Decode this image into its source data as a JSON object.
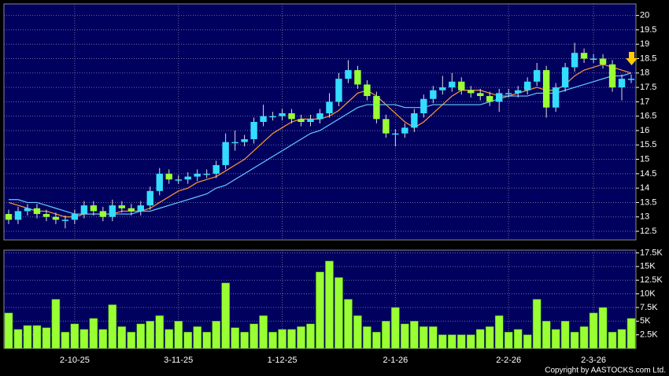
{
  "chart_data": [
    {
      "type": "candlestick",
      "categories": [
        null,
        null,
        null,
        null,
        null,
        null,
        null,
        "2-10-25",
        null,
        null,
        null,
        null,
        null,
        null,
        null,
        null,
        null,
        null,
        "3-11-25",
        null,
        null,
        null,
        null,
        null,
        null,
        null,
        null,
        null,
        null,
        "1-12-25",
        null,
        null,
        null,
        null,
        null,
        null,
        null,
        null,
        null,
        null,
        null,
        "2-1-26",
        null,
        null,
        null,
        null,
        null,
        null,
        null,
        null,
        null,
        null,
        null,
        "2-2-26",
        null,
        null,
        null,
        null,
        null,
        null,
        null,
        null,
        "2-3-26",
        null,
        null,
        null,
        null
      ],
      "open": [
        13.1,
        12.9,
        13.2,
        13.3,
        13.1,
        13.0,
        12.9,
        12.9,
        13.1,
        13.4,
        13.2,
        13.0,
        13.4,
        13.3,
        13.2,
        13.4,
        13.9,
        14.5,
        14.3,
        14.3,
        14.4,
        14.5,
        14.5,
        14.8,
        15.6,
        15.6,
        15.7,
        16.3,
        16.5,
        16.5,
        16.6,
        16.4,
        16.3,
        16.4,
        16.6,
        17.0,
        17.8,
        18.1,
        17.6,
        17.2,
        16.4,
        15.9,
        15.9,
        16.1,
        16.6,
        17.1,
        17.4,
        17.5,
        17.7,
        17.4,
        17.3,
        17.2,
        17.0,
        17.3,
        17.3,
        17.4,
        17.7,
        18.1,
        16.8,
        17.5,
        18.2,
        18.7,
        18.5,
        18.5,
        18.3,
        17.5,
        17.8
      ],
      "high": [
        13.25,
        13.35,
        13.45,
        13.45,
        13.25,
        13.15,
        13.05,
        13.25,
        13.55,
        13.55,
        13.35,
        13.6,
        13.55,
        13.45,
        13.55,
        14.05,
        14.7,
        14.65,
        14.45,
        14.55,
        14.65,
        14.65,
        14.95,
        15.9,
        16.0,
        15.85,
        16.45,
        16.9,
        16.65,
        16.75,
        16.75,
        16.55,
        16.55,
        16.75,
        17.3,
        18.0,
        18.45,
        18.25,
        17.75,
        17.35,
        16.55,
        16.05,
        16.25,
        16.75,
        17.25,
        17.55,
        17.9,
        18.0,
        17.85,
        17.55,
        17.45,
        17.35,
        17.45,
        17.45,
        17.55,
        17.85,
        18.35,
        18.25,
        17.65,
        18.35,
        19.05,
        18.85,
        18.65,
        18.65,
        18.45,
        17.95,
        17.95
      ],
      "low": [
        12.75,
        12.75,
        13.05,
        12.95,
        12.85,
        12.75,
        12.6,
        12.75,
        12.95,
        13.05,
        12.85,
        12.85,
        13.15,
        13.05,
        13.05,
        13.25,
        13.75,
        14.15,
        14.15,
        14.15,
        14.25,
        14.35,
        14.35,
        14.65,
        15.3,
        15.45,
        15.55,
        16.15,
        16.35,
        16.35,
        16.25,
        16.15,
        16.15,
        16.25,
        16.45,
        16.85,
        17.65,
        17.45,
        17.05,
        16.25,
        15.75,
        15.45,
        15.75,
        15.95,
        16.45,
        16.95,
        17.25,
        17.35,
        17.25,
        17.15,
        17.05,
        16.85,
        16.65,
        17.15,
        17.15,
        17.25,
        17.55,
        16.45,
        16.65,
        17.35,
        18.05,
        18.35,
        18.35,
        18.15,
        17.35,
        17.05,
        17.65
      ],
      "close": [
        12.9,
        13.2,
        13.3,
        13.1,
        13.0,
        12.9,
        12.9,
        13.1,
        13.4,
        13.2,
        13.0,
        13.4,
        13.3,
        13.2,
        13.4,
        13.9,
        14.5,
        14.3,
        14.3,
        14.4,
        14.5,
        14.5,
        14.8,
        15.6,
        15.6,
        15.7,
        16.3,
        16.5,
        16.5,
        16.6,
        16.4,
        16.3,
        16.4,
        16.6,
        17.0,
        17.8,
        18.1,
        17.6,
        17.2,
        16.4,
        15.9,
        15.9,
        16.1,
        16.6,
        17.1,
        17.4,
        17.5,
        17.7,
        17.4,
        17.3,
        17.2,
        17.0,
        17.3,
        17.3,
        17.4,
        17.7,
        18.1,
        16.8,
        17.5,
        18.2,
        18.7,
        18.5,
        18.5,
        18.3,
        17.5,
        17.8,
        17.8
      ],
      "up_color": "#33ddff",
      "down_color": "#99ff33",
      "series": [
        {
          "color": "#ff9933",
          "values": [
            13.5,
            13.4,
            13.3,
            13.2,
            13.2,
            13.1,
            13.0,
            13.0,
            13.1,
            13.1,
            13.1,
            13.1,
            13.2,
            13.2,
            13.2,
            13.3,
            13.5,
            13.7,
            13.9,
            14.0,
            14.2,
            14.3,
            14.4,
            14.6,
            14.8,
            15.0,
            15.3,
            15.6,
            15.9,
            16.1,
            16.3,
            16.4,
            16.4,
            16.4,
            16.5,
            16.7,
            17.0,
            17.3,
            17.4,
            17.2,
            16.9,
            16.6,
            16.3,
            16.1,
            16.3,
            16.6,
            16.9,
            17.2,
            17.4,
            17.4,
            17.4,
            17.3,
            17.2,
            17.2,
            17.3,
            17.4,
            17.5,
            17.4,
            17.4,
            17.6,
            17.9,
            18.1,
            18.2,
            18.3,
            18.2,
            18.1,
            18.0
          ]
        },
        {
          "color": "#66ccff",
          "values": [
            13.6,
            13.6,
            13.5,
            13.5,
            13.4,
            13.3,
            13.2,
            13.1,
            13.1,
            13.1,
            13.1,
            13.1,
            13.1,
            13.1,
            13.2,
            13.2,
            13.3,
            13.4,
            13.5,
            13.6,
            13.7,
            13.8,
            14.0,
            14.1,
            14.3,
            14.5,
            14.7,
            14.9,
            15.1,
            15.3,
            15.5,
            15.7,
            15.9,
            16.0,
            16.2,
            16.4,
            16.6,
            16.8,
            16.9,
            16.9,
            16.9,
            16.9,
            16.8,
            16.8,
            16.8,
            16.9,
            16.9,
            16.9,
            16.9,
            16.9,
            16.9,
            17.0,
            17.1,
            17.2,
            17.2,
            17.2,
            17.3,
            17.3,
            17.3,
            17.4,
            17.5,
            17.6,
            17.7,
            17.8,
            17.9,
            17.9,
            18.0
          ]
        }
      ],
      "ylim": [
        12.2,
        20.4
      ],
      "yticks": [
        12.5,
        13,
        13.5,
        14,
        14.5,
        15,
        15.5,
        16,
        16.5,
        17,
        17.5,
        18,
        18.5,
        19,
        19.5,
        20
      ],
      "grid": true
    },
    {
      "type": "bar",
      "values": [
        6500,
        3500,
        4200,
        4200,
        3800,
        9000,
        3000,
        4500,
        3500,
        5500,
        3500,
        8000,
        4000,
        3000,
        4500,
        5000,
        6000,
        3500,
        5000,
        3000,
        4000,
        3000,
        5000,
        12000,
        3800,
        3000,
        4500,
        6000,
        3000,
        3500,
        3500,
        4000,
        4500,
        14000,
        16000,
        13000,
        9000,
        6000,
        4000,
        3000,
        5000,
        7500,
        4500,
        5000,
        4000,
        4000,
        2500,
        2500,
        2500,
        2500,
        3500,
        4000,
        6000,
        3000,
        3500,
        2500,
        9000,
        5000,
        3500,
        5000,
        3000,
        4000,
        6500,
        7500,
        3000,
        3500,
        5500
      ],
      "color": "#99ff33",
      "ylim": [
        0,
        18000
      ],
      "yticks": [
        {
          "value": 2500,
          "label": "2.5K"
        },
        {
          "value": 5000,
          "label": "5K"
        },
        {
          "value": 7500,
          "label": "7.5K"
        },
        {
          "value": 10000,
          "label": "10K"
        },
        {
          "value": 12500,
          "label": "12.5K"
        },
        {
          "value": 15000,
          "label": "15K"
        },
        {
          "value": 17500,
          "label": "17.5K"
        }
      ],
      "grid": true
    }
  ],
  "copyright": "Copyright by AASTOCKS.com Ltd."
}
